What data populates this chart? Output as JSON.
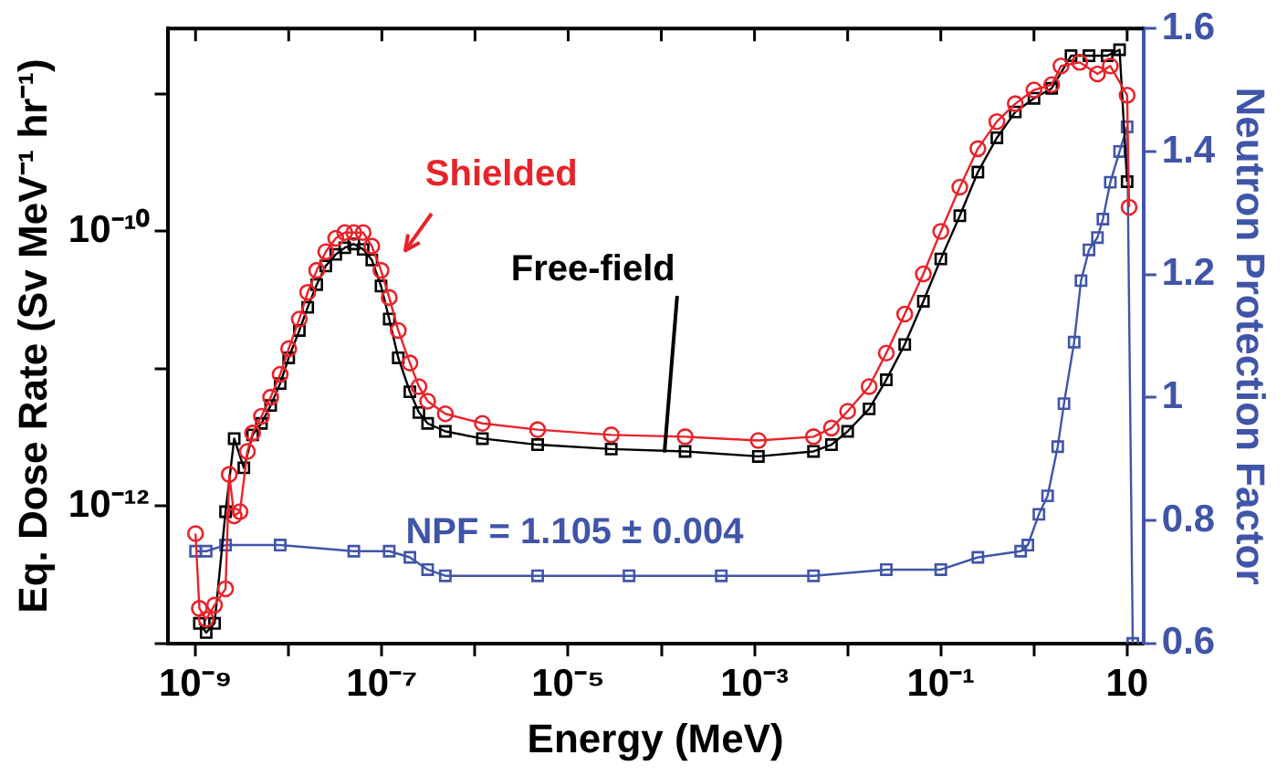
{
  "chart_data": {
    "type": "line",
    "xlabel": "Energy (MeV)",
    "ylabel": "Eq. Dose Rate (Sv MeV⁻¹ hr⁻¹)",
    "y2label": "Neutron Protection Factor",
    "log": "xy",
    "grid": false,
    "legend": false,
    "line_style": "solid",
    "xlim": [
      5e-10,
      15
    ],
    "xticks": [
      {
        "value": 1e-09,
        "label": "10⁻⁹"
      },
      {
        "value": 1e-08,
        "label": null
      },
      {
        "value": 1e-07,
        "label": "10⁻⁷"
      },
      {
        "value": 1e-06,
        "label": null
      },
      {
        "value": 1e-05,
        "label": "10⁻⁵"
      },
      {
        "value": 0.0001,
        "label": null
      },
      {
        "value": 0.001,
        "label": "10⁻³"
      },
      {
        "value": 0.01,
        "label": null
      },
      {
        "value": 0.1,
        "label": "10⁻¹"
      },
      {
        "value": 1,
        "label": null
      },
      {
        "value": 10,
        "label": "10"
      }
    ],
    "ylim": [
      1e-13,
      3e-09
    ],
    "yticks": [
      {
        "value": 1e-13,
        "label": null
      },
      {
        "value": 1e-12,
        "label": "10⁻¹²"
      },
      {
        "value": 1e-11,
        "label": null
      },
      {
        "value": 1e-10,
        "label": "10⁻¹⁰"
      },
      {
        "value": 1e-09,
        "label": null
      }
    ],
    "y2lim": [
      0.6,
      1.6
    ],
    "y2ticks": [
      0.6,
      0.8,
      1,
      1.2,
      1.4,
      1.6
    ],
    "series": [
      {
        "name": "Shielded",
        "color": "#e8232a",
        "marker": "circle",
        "x": [
          1e-09,
          1.1e-09,
          1.3e-09,
          1.6e-09,
          2.1e-09,
          2.3e-09,
          2.6e-09,
          3e-09,
          3.6e-09,
          4.1e-09,
          5.1e-09,
          6.4e-09,
          8.1e-09,
          1e-08,
          1.3e-08,
          1.6e-08,
          2e-08,
          2.5e-08,
          3.2e-08,
          4e-08,
          5e-08,
          6.3e-08,
          7.8e-08,
          9.8e-08,
          1.2e-07,
          1.5e-07,
          2e-07,
          2.5e-07,
          3.1e-07,
          4.8e-07,
          1.2e-06,
          4.7e-06,
          2.9e-05,
          0.00018,
          0.0011,
          0.0043,
          0.0067,
          0.01,
          0.017,
          0.026,
          0.041,
          0.065,
          0.1,
          0.16,
          0.25,
          0.4,
          0.63,
          1,
          1.55,
          1.95,
          3.1,
          4.8,
          6.6,
          10,
          10.5
        ],
        "values": [
          6.3e-13,
          1.8e-13,
          1.5e-13,
          1.9e-13,
          2.5e-13,
          1.7e-12,
          8.5e-13,
          9.1e-13,
          2.5e-12,
          3.4e-12,
          4.5e-12,
          6.2e-12,
          9.1e-12,
          1.4e-11,
          2.3e-11,
          3.6e-11,
          5.2e-11,
          7.1e-11,
          8.9e-11,
          9.8e-11,
          9.8e-11,
          9.8e-11,
          7.8e-11,
          5.2e-11,
          3.3e-11,
          1.9e-11,
          1.1e-11,
          7.4e-12,
          5.8e-12,
          4.7e-12,
          4e-12,
          3.6e-12,
          3.3e-12,
          3.2e-12,
          3e-12,
          3.2e-12,
          3.7e-12,
          4.9e-12,
          7.4e-12,
          1.3e-11,
          2.5e-11,
          4.9e-11,
          1e-10,
          2.1e-10,
          4e-10,
          6.3e-10,
          8.5e-10,
          1.07e-09,
          1.17e-09,
          1.6e-09,
          1.7e-09,
          1.4e-09,
          1.6e-09,
          9.8e-10,
          1.5e-10
        ]
      },
      {
        "name": "Free-field",
        "color": "#000000",
        "marker": "square",
        "x": [
          1.1e-09,
          1.3e-09,
          1.6e-09,
          2.1e-09,
          2.6e-09,
          3.3e-09,
          4.1e-09,
          5.1e-09,
          6.4e-09,
          8.1e-09,
          1e-08,
          1.3e-08,
          1.6e-08,
          2e-08,
          2.5e-08,
          3.2e-08,
          4e-08,
          5e-08,
          6.3e-08,
          7.8e-08,
          9.8e-08,
          1.2e-07,
          1.5e-07,
          2e-07,
          2.5e-07,
          3.1e-07,
          4.8e-07,
          1.2e-06,
          4.7e-06,
          2.9e-05,
          0.00018,
          0.0011,
          0.0043,
          0.0067,
          0.01,
          0.017,
          0.026,
          0.041,
          0.065,
          0.1,
          0.16,
          0.25,
          0.4,
          0.63,
          1,
          1.55,
          2.5,
          3.9,
          6.1,
          8.3,
          10
        ],
        "values": [
          1.4e-13,
          1.2e-13,
          1.4e-13,
          9.1e-13,
          3.1e-12,
          1.9e-12,
          3.3e-12,
          4e-12,
          5.4e-12,
          7.8e-12,
          1.2e-11,
          1.9e-11,
          2.8e-11,
          4.1e-11,
          5.6e-11,
          6.8e-11,
          7.6e-11,
          8.1e-11,
          7.4e-11,
          6.2e-11,
          4e-11,
          2.3e-11,
          1.2e-11,
          6.8e-12,
          4.8e-12,
          4e-12,
          3.5e-12,
          3.1e-12,
          2.8e-12,
          2.6e-12,
          2.5e-12,
          2.3e-12,
          2.5e-12,
          2.8e-12,
          3.5e-12,
          5.1e-12,
          8.3e-12,
          1.5e-11,
          3.1e-11,
          6.3e-11,
          1.3e-10,
          2.7e-10,
          4.8e-10,
          7.4e-10,
          9.3e-10,
          1.1e-09,
          1.9e-09,
          1.9e-09,
          1.9e-09,
          2.1e-09,
          2.3e-10
        ]
      },
      {
        "name": "NPF = 1.105 ± 0.004",
        "color": "#4055a8",
        "marker": "square",
        "axis": "y2",
        "x": [
          1e-09,
          1.3e-09,
          2.1e-09,
          8.1e-09,
          5e-08,
          1.2e-07,
          2e-07,
          3.1e-07,
          4.8e-07,
          4.7e-06,
          4.5e-05,
          0.00044,
          0.0043,
          0.026,
          0.1,
          0.25,
          0.72,
          0.86,
          1.13,
          1.4,
          1.8,
          2.1,
          2.7,
          3.2,
          3.9,
          4.8,
          5.5,
          6.6,
          8.3,
          10,
          11.5
        ],
        "values": [
          0.75,
          0.75,
          0.76,
          0.76,
          0.75,
          0.75,
          0.74,
          0.72,
          0.71,
          0.71,
          0.71,
          0.71,
          0.71,
          0.72,
          0.72,
          0.74,
          0.75,
          0.76,
          0.81,
          0.84,
          0.92,
          0.99,
          1.09,
          1.19,
          1.24,
          1.26,
          1.29,
          1.35,
          1.4,
          1.44,
          0.6
        ]
      }
    ]
  }
}
